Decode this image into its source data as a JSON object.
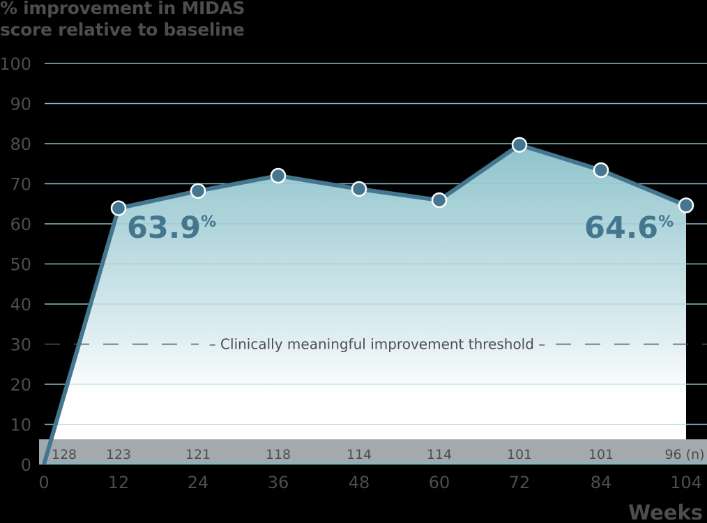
{
  "chart_data": {
    "type": "area",
    "title": "",
    "ylabel": "% improvement in MIDAS score relative to baseline",
    "ylabel_lines": [
      "% improvement in MIDAS",
      "score relative to baseline"
    ],
    "xlabel": "Weeks",
    "x": [
      0,
      12,
      24,
      36,
      48,
      60,
      72,
      84,
      104
    ],
    "x_tick_labels": [
      "0",
      "12",
      "24",
      "36",
      "48",
      "60",
      "72",
      "84",
      "104"
    ],
    "series": [
      {
        "name": "% improvement in MIDAS score",
        "values": [
          0,
          63.9,
          68.2,
          72.0,
          68.7,
          65.9,
          79.7,
          73.4,
          64.6
        ],
        "markers": [
          false,
          true,
          true,
          true,
          true,
          true,
          true,
          true,
          true
        ]
      }
    ],
    "n_row": {
      "label_suffix": "(n)",
      "values": [
        "128",
        "123",
        "121",
        "118",
        "114",
        "114",
        "101",
        "101",
        "96 (n)"
      ]
    },
    "annotations": [
      {
        "text": "63.9",
        "suffix": "%",
        "x": 12,
        "y": 63.9
      },
      {
        "text": "64.6",
        "suffix": "%",
        "x": 104,
        "y": 64.6
      }
    ],
    "reference_line": {
      "y": 30,
      "label": "Clinically meaningful improvement threshold",
      "style": "dashed"
    },
    "ylim": [
      0,
      100
    ],
    "y_ticks": [
      0,
      10,
      20,
      30,
      40,
      50,
      60,
      70,
      80,
      90,
      100
    ],
    "grid": true,
    "legend": null,
    "colors": {
      "line": "#44778f",
      "marker_fill": "#44778f",
      "marker_stroke": "#ffffff",
      "area_top": "#8fc3cc",
      "area_bottom": "#ffffff",
      "grid": "#86c0c8",
      "n_band": "#a3aaae",
      "text": "#4d4d4d",
      "annotation": "#44778f",
      "background": "#000000"
    }
  }
}
